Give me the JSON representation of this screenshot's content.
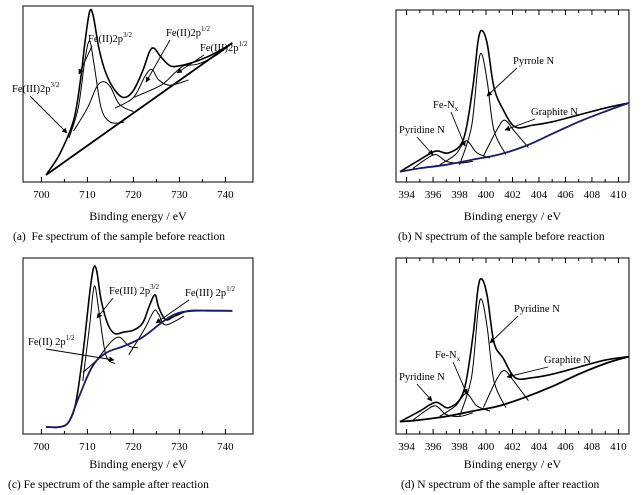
{
  "chart_data": [
    {
      "id": "a",
      "type": "line",
      "caption": "(a)  Fe spectrum of the sample before reaction",
      "xlabel": "Binding energy / eV",
      "xlim": [
        696,
        746
      ],
      "xticks": [
        700,
        710,
        720,
        730,
        740
      ],
      "ylim": [
        0,
        1
      ],
      "grid": false,
      "series": [
        {
          "role": "envelope",
          "x": [
            701,
            704,
            707,
            708.5,
            709.5,
            710.5,
            711.3,
            712.5,
            714,
            716,
            718,
            720,
            722,
            723.5,
            724.5,
            726,
            728,
            730,
            733,
            736,
            739,
            741.5
          ],
          "y": [
            0.04,
            0.16,
            0.35,
            0.58,
            0.8,
            0.97,
            0.94,
            0.76,
            0.62,
            0.52,
            0.48,
            0.52,
            0.63,
            0.74,
            0.76,
            0.71,
            0.66,
            0.66,
            0.68,
            0.71,
            0.75,
            0.79
          ]
        },
        {
          "role": "component",
          "x": [
            706,
            708,
            709.5,
            710.5,
            711.5,
            713,
            715,
            718
          ],
          "y": [
            0.25,
            0.42,
            0.7,
            0.8,
            0.66,
            0.42,
            0.34,
            0.34
          ]
        },
        {
          "role": "component",
          "x": [
            707,
            710,
            712,
            713.5,
            715,
            717,
            720
          ],
          "y": [
            0.29,
            0.42,
            0.54,
            0.57,
            0.54,
            0.44,
            0.4
          ]
        },
        {
          "role": "component",
          "x": [
            716,
            720,
            722.5,
            724,
            725.5,
            728,
            732
          ],
          "y": [
            0.42,
            0.48,
            0.6,
            0.64,
            0.58,
            0.55,
            0.58
          ]
        },
        {
          "role": "component",
          "x": [
            720,
            726,
            729,
            731,
            734,
            738,
            741.5
          ],
          "y": [
            0.48,
            0.55,
            0.62,
            0.66,
            0.67,
            0.72,
            0.79
          ]
        },
        {
          "role": "baseline",
          "x": [
            701,
            741.5
          ],
          "y": [
            0.04,
            0.79
          ]
        }
      ],
      "annotations": [
        {
          "text": "Fe(III)2p",
          "sup": "3/2"
        },
        {
          "text": "Fe(II)2p",
          "sup": "3/2"
        },
        {
          "text": "Fe(II)2p",
          "sup": "1/2"
        },
        {
          "text": "Fe(III)2p",
          "sup": "1/2"
        }
      ]
    },
    {
      "id": "b",
      "type": "line",
      "caption": "(b) N spectrum of the sample before reaction",
      "xlabel": "Binding energy / eV",
      "xlim": [
        393.2,
        410.8
      ],
      "xticks": [
        394,
        396,
        398,
        400,
        402,
        404,
        406,
        408,
        410
      ],
      "ylim": [
        0,
        1
      ],
      "grid": false,
      "series": [
        {
          "role": "envelope",
          "x": [
            393.5,
            395,
            396.2,
            397.2,
            398.3,
            399,
            399.4,
            399.7,
            400.1,
            400.6,
            401.3,
            402.2,
            403.5,
            405,
            407,
            409,
            410.8
          ],
          "y": [
            0.06,
            0.13,
            0.18,
            0.17,
            0.25,
            0.55,
            0.82,
            0.88,
            0.8,
            0.55,
            0.42,
            0.32,
            0.33,
            0.35,
            0.39,
            0.43,
            0.46
          ]
        },
        {
          "role": "component",
          "x": [
            394.5,
            395.4,
            396.2,
            397,
            398,
            399
          ],
          "y": [
            0.08,
            0.13,
            0.16,
            0.12,
            0.11,
            0.12
          ]
        },
        {
          "role": "component",
          "x": [
            396.5,
            397.7,
            398.5,
            399.3,
            400.3
          ],
          "y": [
            0.1,
            0.16,
            0.24,
            0.17,
            0.14
          ]
        },
        {
          "role": "component",
          "x": [
            398,
            398.9,
            399.4,
            399.7,
            400.1,
            400.6,
            401.5
          ],
          "y": [
            0.1,
            0.32,
            0.68,
            0.74,
            0.58,
            0.3,
            0.16
          ]
        },
        {
          "role": "component",
          "x": [
            399.8,
            400.8,
            401.4,
            402.1,
            403.2
          ],
          "y": [
            0.15,
            0.3,
            0.36,
            0.3,
            0.2
          ]
        },
        {
          "role": "baseline",
          "x": [
            393.5,
            395,
            397,
            399,
            401,
            403,
            405,
            407,
            409,
            410.8
          ],
          "y": [
            0.06,
            0.08,
            0.1,
            0.13,
            0.16,
            0.21,
            0.28,
            0.35,
            0.41,
            0.46
          ]
        }
      ],
      "annotations": [
        {
          "text": "Fe-N",
          "sub": "x"
        },
        {
          "text": "Pyrrole N"
        },
        {
          "text": "Pyridine N"
        },
        {
          "text": "Graphite N"
        }
      ]
    },
    {
      "id": "c",
      "type": "line",
      "caption": "(c) Fe spectrum of the sample after reaction",
      "xlabel": "Binding energy / eV",
      "xlim": [
        696,
        746
      ],
      "xticks": [
        700,
        710,
        720,
        730,
        740
      ],
      "ylim": [
        0,
        1
      ],
      "grid": false,
      "series": [
        {
          "role": "envelope",
          "x": [
            701,
            704,
            706,
            707.5,
            709,
            710.5,
            711.3,
            712,
            713,
            714.5,
            716,
            718,
            720,
            722,
            723.5,
            724.7,
            725.5,
            727,
            729,
            732,
            736,
            740,
            741.5
          ],
          "y": [
            0.04,
            0.04,
            0.07,
            0.18,
            0.45,
            0.8,
            0.94,
            0.93,
            0.76,
            0.62,
            0.57,
            0.58,
            0.59,
            0.63,
            0.73,
            0.79,
            0.72,
            0.65,
            0.67,
            0.7,
            0.7,
            0.7,
            0.7
          ]
        },
        {
          "role": "component",
          "x": [
            709,
            710.5,
            711.5,
            712.5,
            714,
            716
          ],
          "y": [
            0.3,
            0.62,
            0.84,
            0.7,
            0.45,
            0.4
          ]
        },
        {
          "role": "component",
          "x": [
            709,
            712,
            715,
            717,
            719,
            721
          ],
          "y": [
            0.35,
            0.42,
            0.52,
            0.55,
            0.5,
            0.49
          ]
        },
        {
          "role": "component",
          "x": [
            719,
            722.5,
            724.5,
            725.5,
            727,
            731
          ],
          "y": [
            0.45,
            0.6,
            0.7,
            0.68,
            0.62,
            0.67
          ]
        },
        {
          "role": "baseline",
          "x": [
            701,
            704,
            706,
            708,
            711,
            714,
            718,
            722,
            726,
            729,
            733,
            741.5
          ],
          "y": [
            0.04,
            0.04,
            0.07,
            0.2,
            0.38,
            0.46,
            0.5,
            0.55,
            0.63,
            0.68,
            0.7,
            0.7
          ]
        }
      ],
      "annotations": [
        {
          "text": "Fe(III)  2p",
          "sup": "3/2"
        },
        {
          "text": "Fe(III)  2p",
          "sup": "1/2"
        },
        {
          "text": "Fe(II)  2p",
          "sup": "1/2"
        }
      ]
    },
    {
      "id": "d",
      "type": "line",
      "caption": "(d) N spectrum of the sample after reaction",
      "xlabel": "Binding energy / eV",
      "xlim": [
        393.2,
        410.8
      ],
      "xticks": [
        394,
        396,
        398,
        400,
        402,
        404,
        406,
        408,
        410
      ],
      "ylim": [
        0,
        1
      ],
      "grid": false,
      "series": [
        {
          "role": "envelope",
          "x": [
            393.5,
            395,
            396.2,
            397.2,
            398.3,
            399,
            399.4,
            399.7,
            400.1,
            400.6,
            401.3,
            402.2,
            403.5,
            405,
            407,
            409,
            410.8
          ],
          "y": [
            0.07,
            0.13,
            0.18,
            0.15,
            0.24,
            0.55,
            0.83,
            0.88,
            0.78,
            0.52,
            0.43,
            0.32,
            0.32,
            0.34,
            0.38,
            0.42,
            0.44
          ]
        },
        {
          "role": "component",
          "x": [
            394.5,
            395.4,
            396.2,
            397,
            398,
            399
          ],
          "y": [
            0.08,
            0.13,
            0.16,
            0.11,
            0.1,
            0.12
          ]
        },
        {
          "role": "component",
          "x": [
            396.5,
            397.7,
            398.5,
            399.3,
            400.3
          ],
          "y": [
            0.1,
            0.16,
            0.23,
            0.16,
            0.13
          ]
        },
        {
          "role": "component",
          "x": [
            398,
            398.9,
            399.4,
            399.7,
            400.1,
            400.6,
            401.5
          ],
          "y": [
            0.1,
            0.32,
            0.7,
            0.76,
            0.6,
            0.3,
            0.15
          ]
        },
        {
          "role": "component",
          "x": [
            399.8,
            400.8,
            401.4,
            402.1,
            403.2
          ],
          "y": [
            0.15,
            0.31,
            0.36,
            0.3,
            0.19
          ]
        },
        {
          "role": "baseline",
          "x": [
            393.5,
            395,
            397,
            399,
            401,
            403,
            405,
            407,
            409,
            410.8
          ],
          "y": [
            0.07,
            0.08,
            0.1,
            0.13,
            0.16,
            0.21,
            0.27,
            0.34,
            0.4,
            0.44
          ]
        }
      ],
      "annotations": [
        {
          "text": "Pyridine N"
        },
        {
          "text": "Fe-N",
          "sub": "x"
        },
        {
          "text": "Pyridine N"
        },
        {
          "text": "Graphite N"
        }
      ]
    }
  ]
}
